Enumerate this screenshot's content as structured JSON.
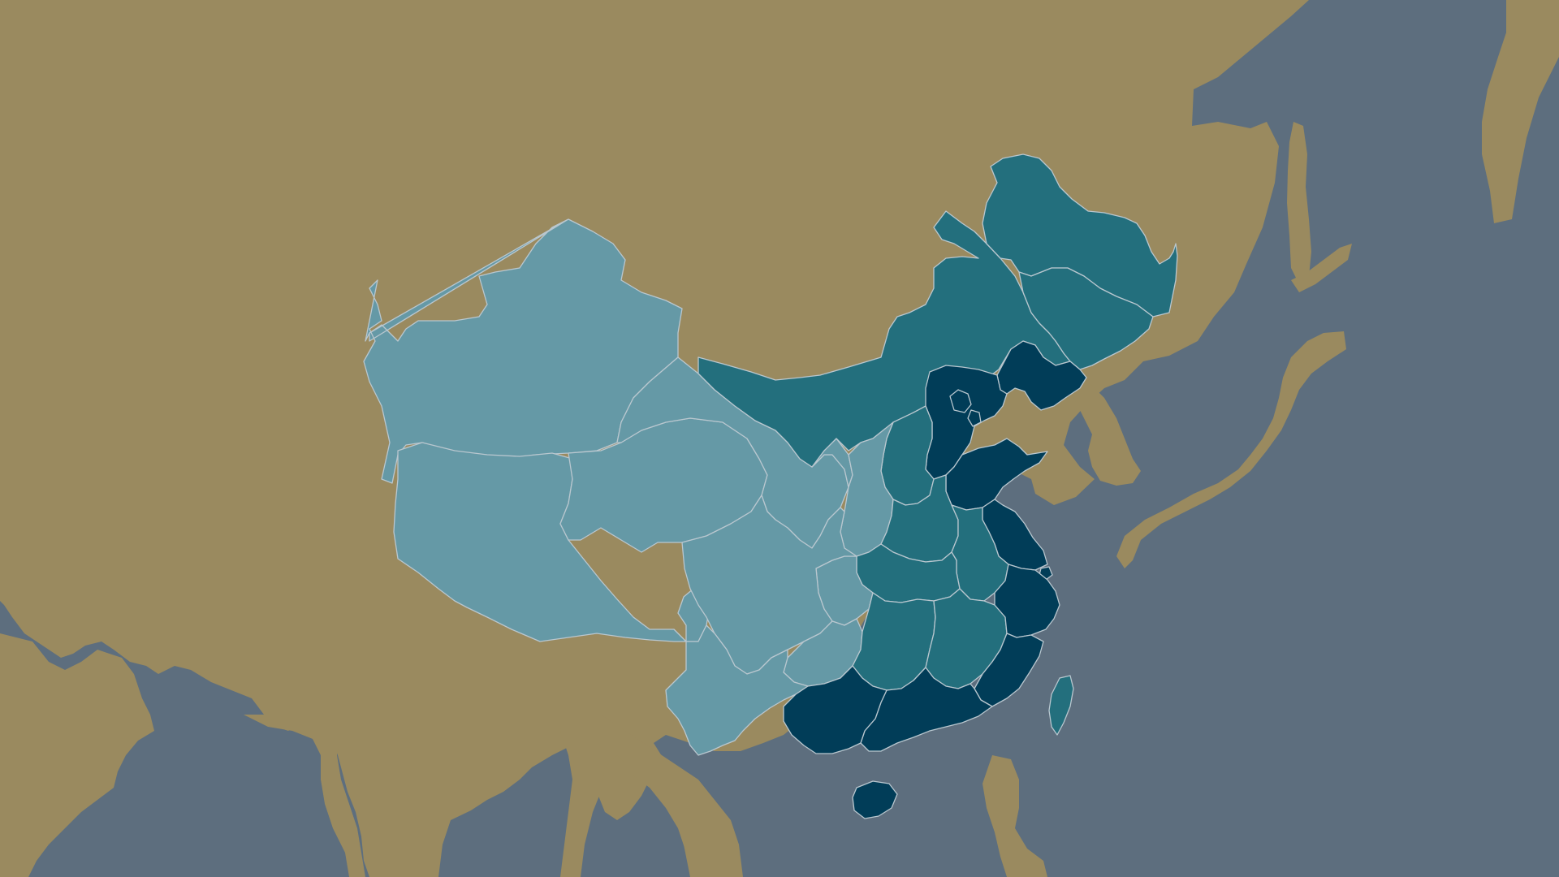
{
  "map": {
    "region": "East Asia",
    "projection": "equirectangular-like",
    "labels_shown": false,
    "legend_shown": false,
    "colors": {
      "ocean": "#5d6e7e",
      "land": "#9a8a5f",
      "tier_low": "#6599a6",
      "tier_mid": "#236f7d",
      "tier_high": "#013d58",
      "border": "#b9c7cf"
    },
    "choropleth_tiers": [
      {
        "tier": "low",
        "color": "#6599a6",
        "regions": [
          "xinjiang",
          "tibet",
          "qinghai",
          "gansu",
          "ningxia",
          "sichuan",
          "chongqing",
          "yunnan",
          "guizhou",
          "shaanxi"
        ]
      },
      {
        "tier": "mid",
        "color": "#236f7d",
        "regions": [
          "inner-mongolia",
          "heilongjiang",
          "jilin",
          "shanxi",
          "henan",
          "hubei",
          "hunan",
          "jiangxi",
          "anhui",
          "taiwan"
        ]
      },
      {
        "tier": "high",
        "color": "#013d58",
        "regions": [
          "liaoning",
          "beijing",
          "tianjin",
          "hebei",
          "shandong",
          "jiangsu",
          "shanghai",
          "zhejiang",
          "fujian",
          "guangdong",
          "guangxi",
          "hainan"
        ]
      }
    ]
  }
}
